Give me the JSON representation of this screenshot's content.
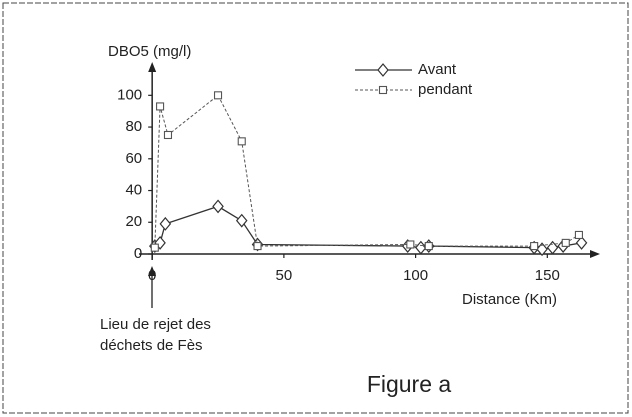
{
  "chart_data": {
    "type": "line",
    "caption": "Figure a",
    "ylabel": "DBO5 (mg/l)",
    "xlabel": "Distance (Km)",
    "annotation": [
      "Lieu de rejet des",
      "déchets de Fès"
    ],
    "xlim": [
      -5,
      170
    ],
    "ylim": [
      0,
      121
    ],
    "xticks": [
      0,
      50,
      100,
      150
    ],
    "yticks": [
      0,
      20,
      40,
      60,
      80,
      100
    ],
    "grid": false,
    "legend": "top-right",
    "series": [
      {
        "name": "Avant",
        "color": "#333333",
        "marker": "diamond",
        "dash": false,
        "x": [
          1,
          3,
          5,
          25,
          34,
          40,
          97,
          102,
          105,
          145,
          148,
          152,
          156,
          163
        ],
        "values": [
          5,
          7,
          19,
          30,
          21,
          6,
          5,
          4,
          5,
          4,
          3,
          4,
          5,
          7
        ]
      },
      {
        "name": "pendant",
        "color": "#555555",
        "marker": "square",
        "dash": true,
        "x": [
          1,
          3,
          6,
          25,
          34,
          40,
          98,
          105,
          145,
          157,
          162
        ],
        "values": [
          4,
          93,
          75,
          100,
          71,
          5,
          6,
          5,
          5,
          7,
          12
        ]
      }
    ]
  }
}
